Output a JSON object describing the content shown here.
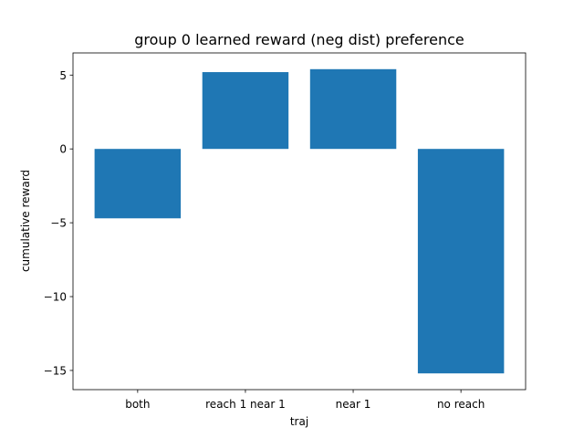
{
  "chart_data": {
    "type": "bar",
    "title": "group 0 learned reward (neg dist) preference",
    "xlabel": "traj",
    "ylabel": "cumulative reward",
    "categories": [
      "both",
      "reach 1 near 1",
      "near 1",
      "no reach"
    ],
    "values": [
      -4.7,
      5.2,
      5.4,
      -15.2
    ],
    "ylim": [
      -16.3,
      6.5
    ],
    "yticks": [
      5,
      0,
      -5,
      -10,
      -15
    ],
    "ytick_labels": [
      "5",
      "0",
      "−5",
      "−10",
      "−15"
    ],
    "bar_color": "#1f77b4",
    "grid": false,
    "legend": "none"
  }
}
